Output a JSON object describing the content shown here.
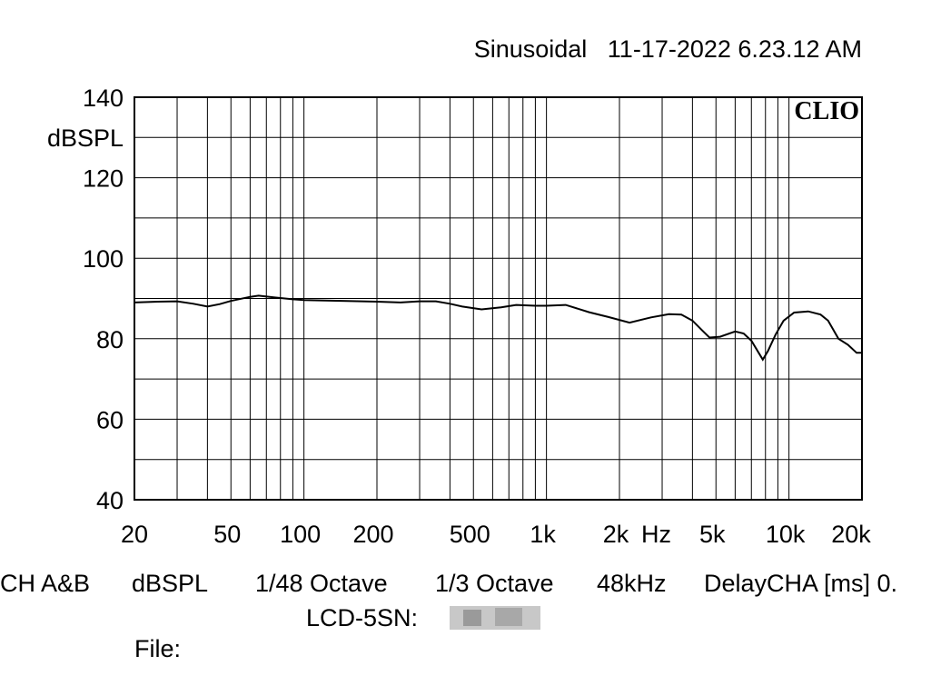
{
  "chart_data": {
    "type": "line",
    "title": "Sinusoidal   11-17-2022 6.23.12 AM",
    "y_label": "dBSPL",
    "x_unit": "Hz",
    "logo": "CLIO",
    "log_x": true,
    "color": "#000000",
    "x": [
      20,
      25,
      30,
      35,
      40,
      45,
      50,
      60,
      65,
      75,
      90,
      100,
      150,
      200,
      250,
      300,
      350,
      400,
      450,
      540,
      650,
      750,
      900,
      1000,
      1200,
      1500,
      1800,
      2200,
      2700,
      3200,
      3600,
      4000,
      4400,
      4700,
      5200,
      6000,
      6500,
      7000,
      7500,
      7800,
      8200,
      8800,
      9500,
      10500,
      12000,
      13500,
      14500,
      16000,
      17500,
      19000,
      20000
    ],
    "values": [
      89,
      89.2,
      89.3,
      88.7,
      88,
      88.6,
      89.4,
      90.4,
      90.7,
      90.3,
      89.8,
      89.6,
      89.4,
      89.2,
      89,
      89.3,
      89.3,
      88.7,
      88,
      87.3,
      87.8,
      88.4,
      88.2,
      88.2,
      88.4,
      86.6,
      85.4,
      84,
      85.3,
      86.1,
      86,
      84.5,
      82,
      80.3,
      80.5,
      81.8,
      81.3,
      79.5,
      76.5,
      74.8,
      77,
      81,
      84.5,
      86.5,
      86.8,
      86,
      84.5,
      80,
      78.5,
      76.5,
      76.5
    ],
    "xlim": [
      20,
      20000
    ],
    "xticks": [
      20,
      50,
      100,
      200,
      500,
      {
        "value": 1000,
        "label": "1k"
      },
      {
        "value": 2000,
        "label": "2k"
      },
      {
        "value": 5000,
        "label": "5k"
      },
      {
        "value": 10000,
        "label": "10k"
      },
      {
        "value": 20000,
        "label": "20k"
      }
    ],
    "xgrid": [
      30,
      40,
      60,
      70,
      80,
      90,
      300,
      400,
      600,
      700,
      800,
      900,
      3000,
      4000,
      6000,
      7000,
      8000,
      9000
    ],
    "ylim": [
      40,
      140
    ],
    "yticks": [
      40,
      60,
      80,
      100,
      120,
      140
    ],
    "ygrid": [
      50,
      70,
      90,
      110,
      130
    ],
    "grid": true
  },
  "footer": {
    "items": [
      "CH A&B",
      "dBSPL",
      "1/48 Octave",
      "1/3 Octave",
      "48kHz",
      "DelayCHA [ms] 0."
    ],
    "device": "LCD-5SN:",
    "file": "File:"
  }
}
